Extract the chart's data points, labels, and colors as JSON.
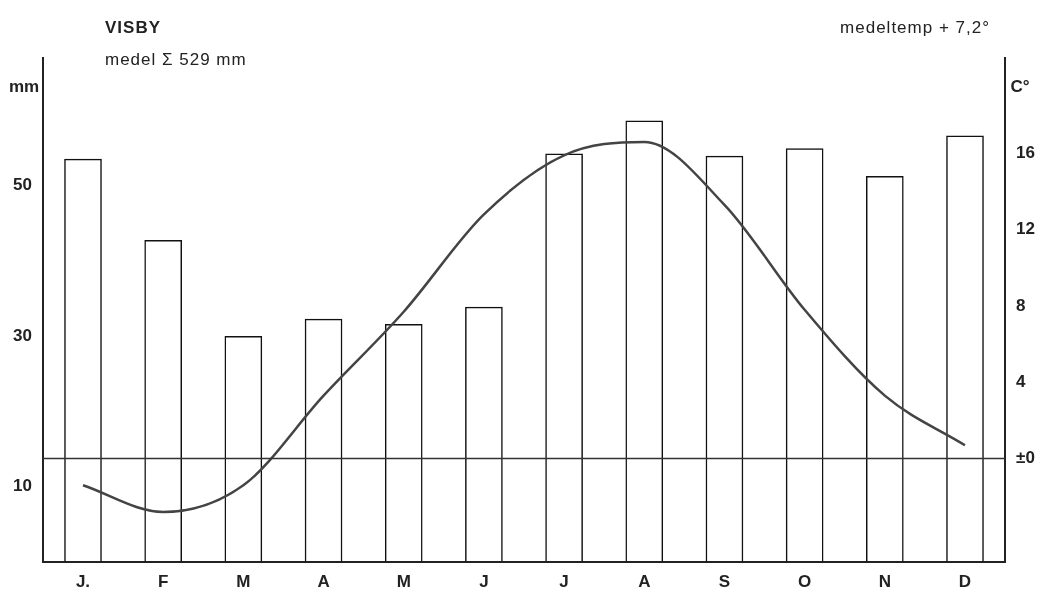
{
  "chart_data": {
    "type": "bar",
    "title": "VISBY",
    "subtitle": "medel Σ 529 mm",
    "ylabel": "mm",
    "y2label": "C°",
    "annotations": [
      "medeltemp + 7,2°"
    ],
    "categories": [
      "J.",
      "F",
      "M",
      "A",
      "M",
      "J",
      "J",
      "A",
      "S",
      "O",
      "N",
      "D"
    ],
    "series": [
      {
        "color": "#111111",
        "values": [
          53.6,
          42.8,
          30,
          32.3,
          31.6,
          33.9,
          54.3,
          58.7,
          54,
          55,
          51.3,
          56.7
        ]
      },
      {
        "type": "line",
        "axis": "y2",
        "color": "#444444",
        "values": [
          -1.4,
          -2.8,
          -1.4,
          3.3,
          7.7,
          12.8,
          15.9,
          16.6,
          13.3,
          7.8,
          3.3,
          0.7
        ]
      }
    ],
    "ylim": [
      0,
      67
    ],
    "yticks": [
      10,
      30,
      50
    ],
    "y2lim": [
      -5.4,
      21
    ],
    "y2ticks": [
      {
        "value": 0,
        "label": "±0"
      },
      4,
      8,
      12,
      16
    ],
    "ref_lines": [
      {
        "axis": "y2",
        "value": 0,
        "color": "#333333"
      }
    ],
    "marker": "none",
    "grid": false,
    "legend": false
  }
}
